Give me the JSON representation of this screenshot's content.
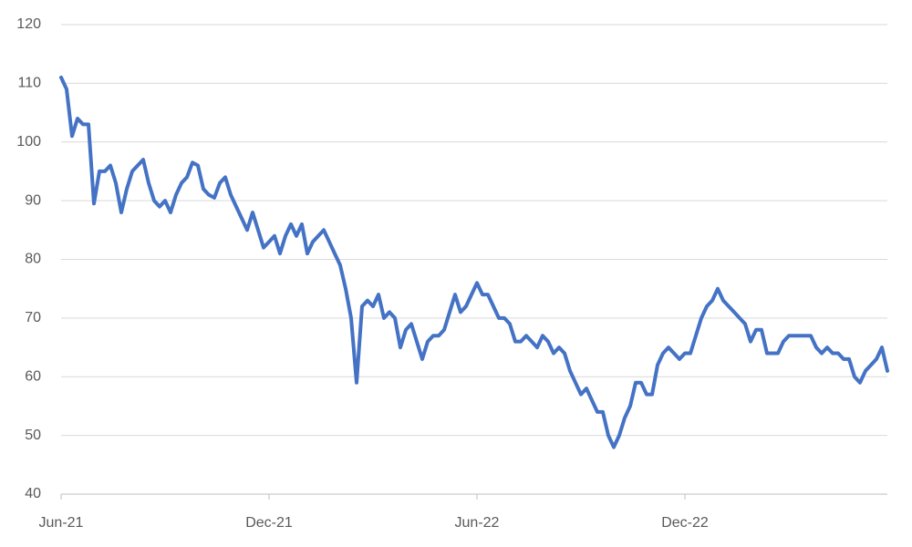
{
  "chart_data": {
    "type": "line",
    "categories": [
      "Jun-21",
      null,
      null,
      null,
      null,
      null,
      null,
      null,
      null,
      null,
      null,
      null,
      null,
      null,
      null,
      null,
      null,
      null,
      null,
      null,
      null,
      null,
      null,
      null,
      null,
      null,
      null,
      null,
      null,
      null,
      null,
      null,
      null,
      null,
      null,
      null,
      null,
      null,
      "Dec-21",
      null,
      null,
      null,
      null,
      null,
      null,
      null,
      null,
      null,
      null,
      null,
      null,
      null,
      null,
      null,
      null,
      null,
      null,
      null,
      null,
      null,
      null,
      null,
      null,
      null,
      null,
      null,
      null,
      null,
      null,
      null,
      null,
      null,
      null,
      null,
      null,
      null,
      "Jun-22",
      null,
      null,
      null,
      null,
      null,
      null,
      null,
      null,
      null,
      null,
      null,
      null,
      null,
      null,
      null,
      null,
      null,
      null,
      null,
      null,
      null,
      null,
      null,
      null,
      null,
      null,
      null,
      null,
      null,
      null,
      null,
      null,
      null,
      null,
      null,
      null,
      null,
      "Dec-22",
      null,
      null,
      null,
      null,
      null,
      null,
      null,
      null,
      null,
      null,
      null,
      null,
      null,
      null,
      null,
      null,
      null,
      null,
      null,
      null,
      null,
      null,
      null,
      null,
      null,
      null,
      null,
      null,
      null,
      null,
      null,
      null,
      null,
      null,
      null,
      null,
      null
    ],
    "values": [
      111,
      109,
      101,
      104,
      103,
      103,
      89.5,
      95,
      95,
      96,
      93,
      88,
      92,
      95,
      96,
      97,
      93,
      90,
      89,
      90,
      88,
      91,
      93,
      94,
      96.5,
      96,
      92,
      91,
      90.5,
      93,
      94,
      91,
      89,
      87,
      85,
      88,
      85,
      82,
      83,
      84,
      81,
      84,
      86,
      84,
      86,
      81,
      83,
      84,
      85,
      83,
      81,
      79,
      75,
      70,
      59,
      72,
      73,
      72,
      74,
      70,
      71,
      70,
      65,
      68,
      69,
      66,
      63,
      66,
      67,
      67,
      68,
      71,
      74,
      71,
      72,
      74,
      76,
      74,
      74,
      72,
      70,
      70,
      69,
      66,
      66,
      67,
      66,
      65,
      67,
      66,
      64,
      65,
      64,
      61,
      59,
      57,
      58,
      56,
      54,
      54,
      50,
      48,
      50,
      53,
      55,
      59,
      59,
      57,
      57,
      62,
      64,
      65,
      64,
      63,
      64,
      64,
      67,
      70,
      72,
      73,
      75,
      73,
      72,
      71,
      70,
      69,
      66,
      68,
      68,
      64,
      64,
      64,
      66,
      67,
      67,
      67,
      67,
      67,
      65,
      64,
      65,
      64,
      64,
      63,
      63,
      60,
      59,
      61,
      62,
      63,
      65,
      61
    ],
    "color": "#4472c4",
    "ylim": [
      40,
      120
    ],
    "yticks": [
      40,
      50,
      60,
      70,
      80,
      90,
      100,
      110,
      120
    ],
    "grid": true
  }
}
